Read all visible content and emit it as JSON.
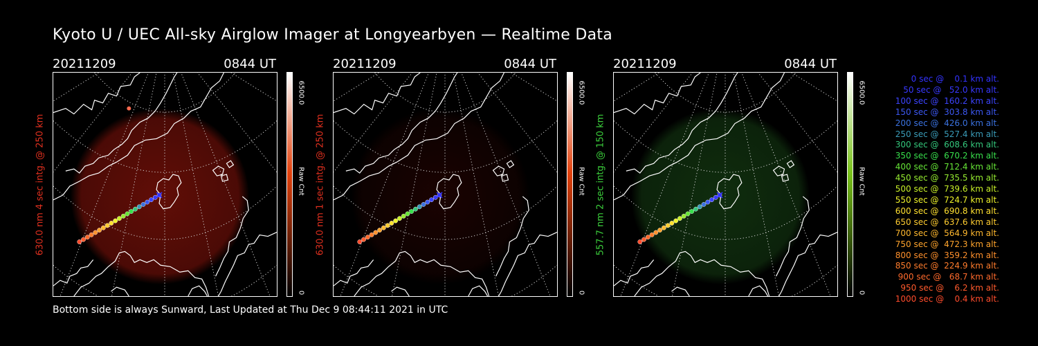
{
  "title": "Kyoto U / UEC All-sky Airglow Imager at Longyearbyen — Realtime Data",
  "footer": "Bottom side is always Sunward, Last Updated at Thu Dec  9 08:44:11 2021 in UTC",
  "panels": [
    {
      "date": "20211209",
      "time": "0844 UT",
      "ylabel": "630.0 nm 4 sec intg. @ 250 km",
      "label_color": "#e0301f",
      "glow_color": "#b3190d",
      "glow_opacity": 0.42,
      "bar_top_color": "#ffffff",
      "bar_mid_color": "#e2410c",
      "bar_bottom_color": "#000000",
      "cbar_max": "6500.0",
      "cbar_unit": "Raw Cnt",
      "cbar_min": "0"
    },
    {
      "date": "20211209",
      "time": "0844 UT",
      "ylabel": "630.0 nm 1 sec intg. @ 250 km",
      "label_color": "#e0301f",
      "glow_color": "#6e0c06",
      "glow_opacity": 0.12,
      "bar_top_color": "#ffffff",
      "bar_mid_color": "#e2410c",
      "bar_bottom_color": "#000000",
      "cbar_max": "6500.0",
      "cbar_unit": "Raw Cnt",
      "cbar_min": "0"
    },
    {
      "date": "20211209",
      "time": "0844 UT",
      "ylabel": "557.7 nm 2 sec intg. @ 150 km",
      "label_color": "#3cd03c",
      "glow_color": "#1f5a1c",
      "glow_opacity": 0.38,
      "bar_top_color": "#ffffff",
      "bar_mid_color": "#79c21a",
      "bar_bottom_color": "#000000",
      "cbar_max": "6500.0",
      "cbar_unit": "Raw Cnt",
      "cbar_min": "0"
    }
  ],
  "legend": [
    {
      "text": "   0 sec @    0.1 km alt.",
      "color": "#3333ff"
    },
    {
      "text": "  50 sec @   52.0 km alt.",
      "color": "#3838ff"
    },
    {
      "text": " 100 sec @  160.2 km alt.",
      "color": "#3c44ff"
    },
    {
      "text": " 150 sec @  303.8 km alt.",
      "color": "#3c58f2"
    },
    {
      "text": " 200 sec @  426.0 km alt.",
      "color": "#3a72e0"
    },
    {
      "text": " 250 sec @  527.4 km alt.",
      "color": "#3a9cb8"
    },
    {
      "text": " 300 sec @  608.6 km alt.",
      "color": "#34c87c"
    },
    {
      "text": " 350 sec @  670.2 km alt.",
      "color": "#38e04c"
    },
    {
      "text": " 400 sec @  712.4 km alt.",
      "color": "#66e636"
    },
    {
      "text": " 450 sec @  735.5 km alt.",
      "color": "#96ec30"
    },
    {
      "text": " 500 sec @  739.6 km alt.",
      "color": "#c8f028"
    },
    {
      "text": " 550 sec @  724.7 km alt.",
      "color": "#eef22a"
    },
    {
      "text": " 600 sec @  690.8 km alt.",
      "color": "#ffe030"
    },
    {
      "text": " 650 sec @  637.6 km alt.",
      "color": "#ffcc30"
    },
    {
      "text": " 700 sec @  564.9 km alt.",
      "color": "#ffb82e"
    },
    {
      "text": " 750 sec @  472.3 km alt.",
      "color": "#ffa42c"
    },
    {
      "text": " 800 sec @  359.2 km alt.",
      "color": "#ff902c"
    },
    {
      "text": " 850 sec @  224.9 km alt.",
      "color": "#ff7c2c"
    },
    {
      "text": " 900 sec @   68.7 km alt.",
      "color": "#ff6a2c"
    },
    {
      "text": " 950 sec @    6.2 km alt.",
      "color": "#ff5a2c"
    },
    {
      "text": "1000 sec @    0.4 km alt.",
      "color": "#ff4c2c"
    }
  ]
}
